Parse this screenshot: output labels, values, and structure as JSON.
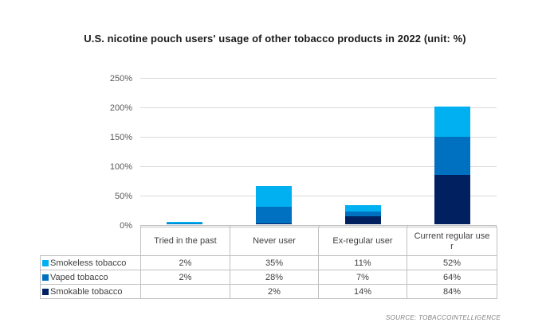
{
  "title": "U.S. nicotine pouch users' usage of other tobacco products in 2022 (unit: %)",
  "source": "SOURCE: TOBACCOINTELLIGENCE",
  "colors": {
    "smokeless_tobacco": "#00B0F0",
    "vaped_tobacco": "#0070C0",
    "smokable_tobacco": "#002060",
    "gridline": "#DADADA",
    "axis_line": "#C0C0C0",
    "table_border": "#BFBFBF",
    "axis_text": "#595959"
  },
  "chart_data": {
    "type": "bar",
    "stacked": true,
    "title": "U.S. nicotine pouch users' usage of other tobacco products in 2022 (unit: %)",
    "categories": [
      "Tried in the past",
      "Never user",
      "Ex-regular user",
      "Current regular user"
    ],
    "series": [
      {
        "name": "Smokeless tobacco",
        "color": "#00B0F0",
        "values": [
          2,
          35,
          11,
          52
        ],
        "labels": [
          "2%",
          "35%",
          "11%",
          "52%"
        ]
      },
      {
        "name": "Vaped tobacco",
        "color": "#0070C0",
        "values": [
          2,
          28,
          7,
          64
        ],
        "labels": [
          "2%",
          "28%",
          "7%",
          "64%"
        ]
      },
      {
        "name": "Smokable tobacco",
        "color": "#002060",
        "values": [
          null,
          2,
          14,
          84
        ],
        "labels": [
          "",
          "2%",
          "14%",
          "84%"
        ]
      }
    ],
    "stack_order_bottom_to_top": [
      "Smokable tobacco",
      "Vaped tobacco",
      "Smokeless tobacco"
    ],
    "yticks": [
      {
        "value": 0,
        "label": "0%"
      },
      {
        "value": 50,
        "label": "50%"
      },
      {
        "value": 100,
        "label": "100%"
      },
      {
        "value": 150,
        "label": "150%"
      },
      {
        "value": 200,
        "label": "200%"
      },
      {
        "value": 250,
        "label": "250%"
      }
    ],
    "ylim": [
      0,
      250
    ],
    "grid": true,
    "legend_position": "table-left",
    "xlabel": "",
    "ylabel": ""
  }
}
